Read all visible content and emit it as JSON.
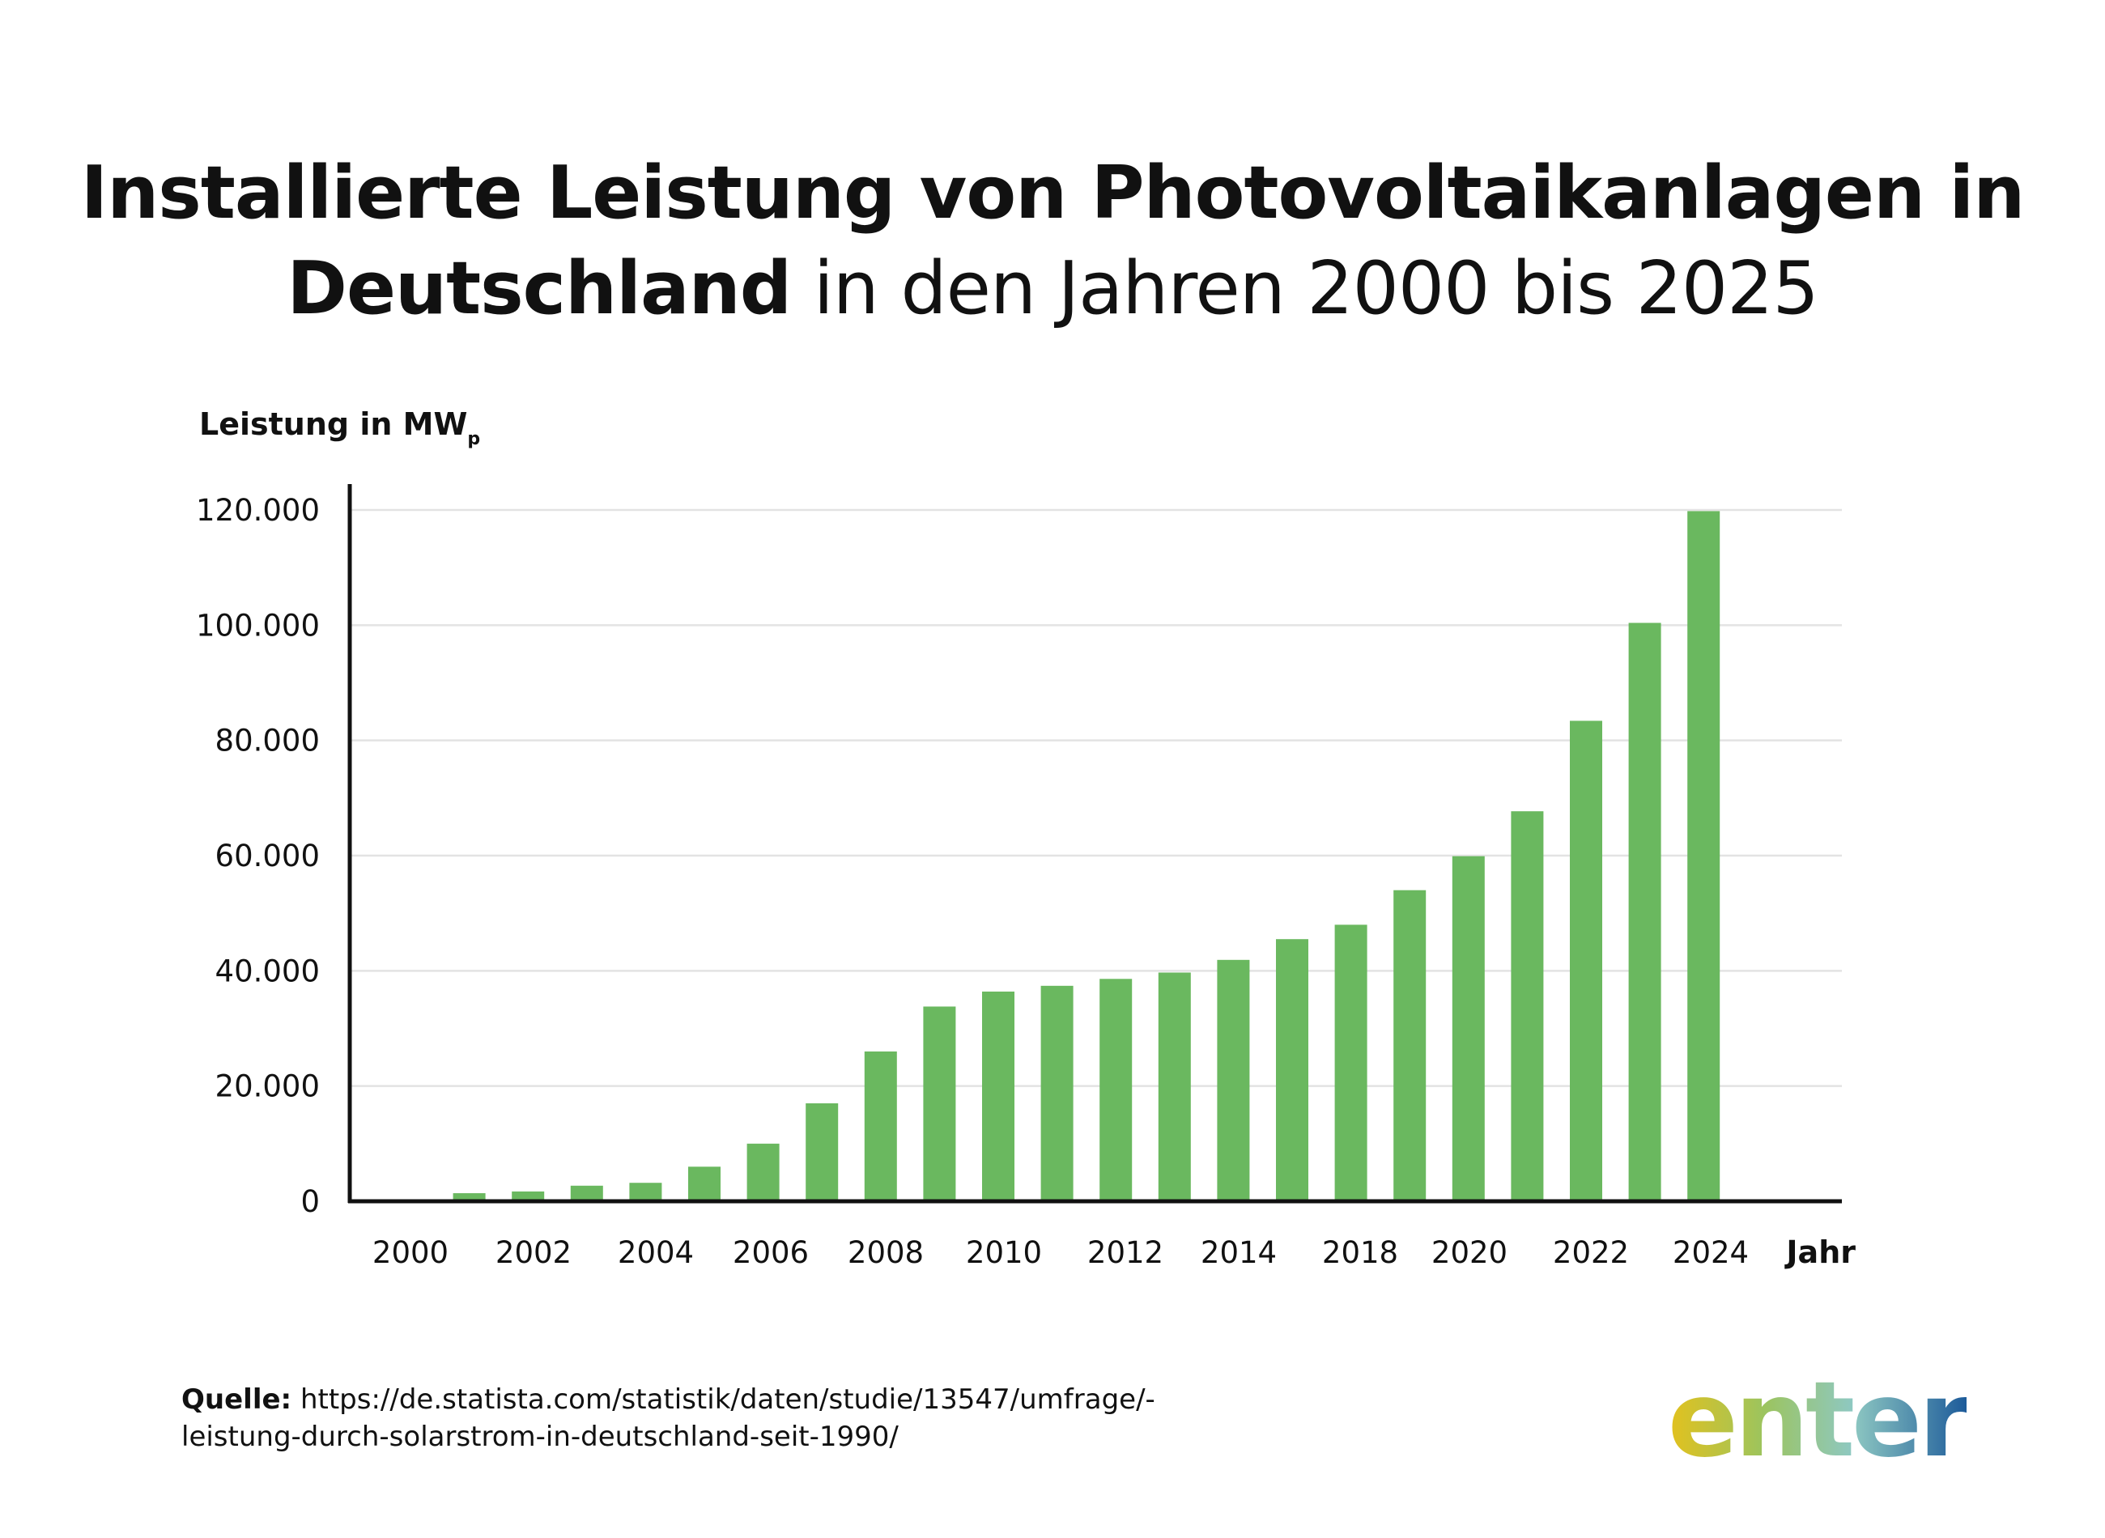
{
  "title": {
    "line1": "Installierte Leistung von Photovoltaikanlagen in",
    "line2_bold": "Deutschland",
    "line2_rest": " in den Jahren 2000 bis 2025"
  },
  "colors": {
    "bar": "#6ab85f",
    "grid": "#e3e3e3",
    "axis": "#111111"
  },
  "chart_data": {
    "type": "bar",
    "ylabel": "Leistung in MW",
    "ylabel_subscript": "p",
    "xlabel": "Jahr",
    "ylim": [
      0,
      120000
    ],
    "y_ticks": [
      0,
      20000,
      40000,
      60000,
      80000,
      100000,
      120000
    ],
    "y_tick_labels": [
      "0",
      "20.000",
      "40.000",
      "60.000",
      "80.000",
      "100.000",
      "120.000"
    ],
    "x_tick_labels": [
      "2000",
      "2002",
      "2004",
      "2006",
      "2008",
      "2010",
      "2012",
      "2014",
      "2018",
      "2020",
      "2022",
      "2024"
    ],
    "values": [
      0,
      1400,
      1700,
      2700,
      3200,
      6000,
      10000,
      17000,
      26000,
      33800,
      36400,
      37400,
      38600,
      39700,
      41900,
      45500,
      48000,
      54000,
      59900,
      67700,
      83400,
      100400,
      119800
    ],
    "grid": true,
    "legend": "none"
  },
  "source": {
    "label": "Quelle:",
    "text": " https://de.statista.com/statistik/daten/studie/13547/umfrage/-leistung-durch-solarstrom-in-deutschland-seit-1990/"
  },
  "logo": {
    "text": "enter"
  }
}
